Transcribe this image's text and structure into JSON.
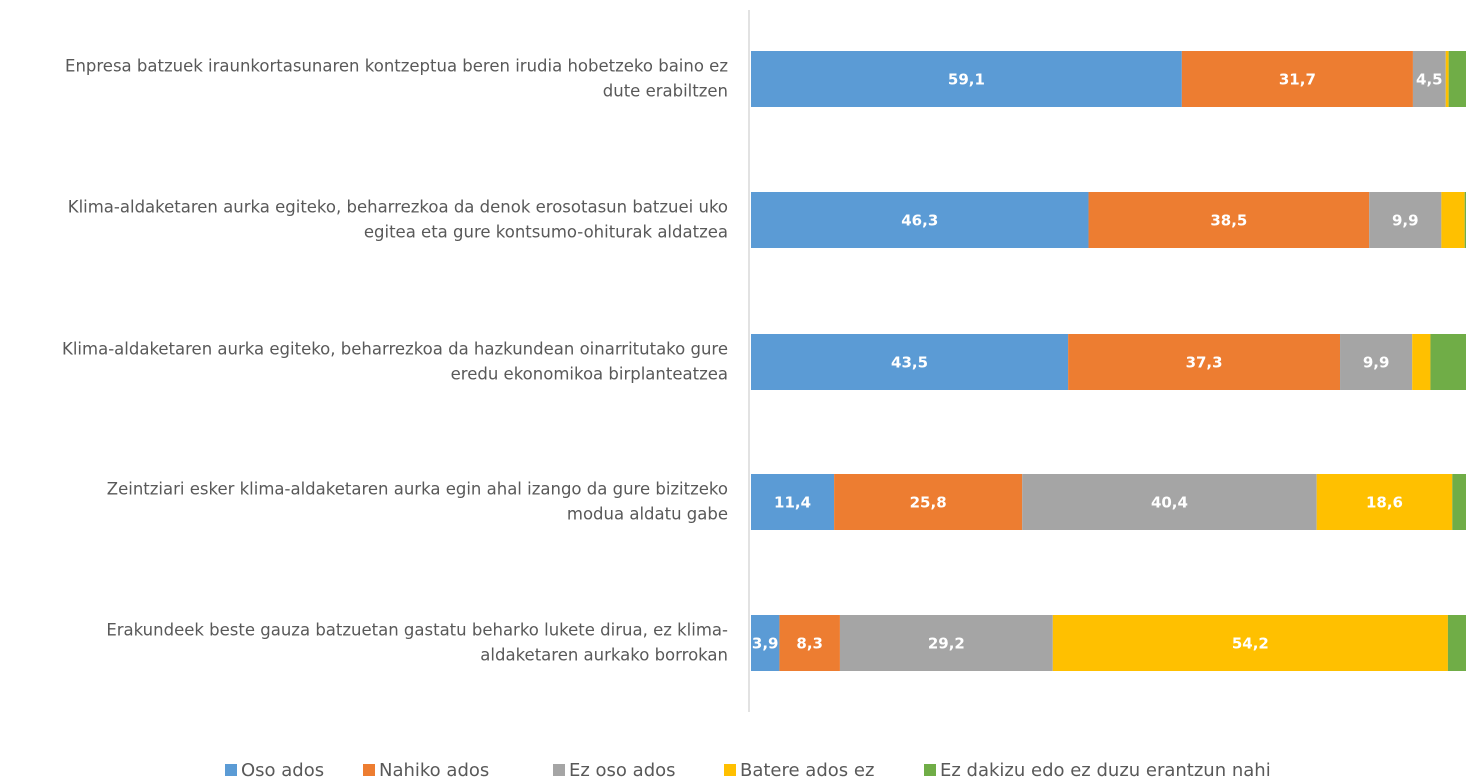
{
  "chart_data": {
    "type": "stacked_barh",
    "categories": [
      [
        "Enpresa batzuek iraunkortasunaren kontzeptua beren irudia hobetzeko baino ez",
        "dute erabiltzen"
      ],
      [
        "Klima-aldaketaren aurka egiteko, beharrezkoa da denok erosotasun batzuei uko",
        "egitea eta gure kontsumo-ohiturak aldatzea"
      ],
      [
        "Klima-aldaketaren aurka egiteko, beharrezkoa da hazkundean oinarritutako gure",
        "eredu ekonomikoa birplanteatzea"
      ],
      [
        "Zeintziari esker klima-aldaketaren aurka egin ahal izango da gure bizitzeko",
        "modua aldatu gabe"
      ],
      [
        "Erakundeek beste gauza batzuetan gastatu beharko lukete dirua, ez klima-",
        "aldaketaren aurkako borrokan"
      ]
    ],
    "series": [
      {
        "name": "Oso ados",
        "color": "#5b9bd5",
        "values": [
          59.1,
          46.3,
          43.5,
          11.4,
          3.9
        ],
        "value_labels": [
          "59,1",
          "46,3",
          "43,5",
          "11,4",
          "3,9"
        ]
      },
      {
        "name": "Nahiko ados",
        "color": "#ed7d31",
        "values": [
          31.7,
          38.5,
          37.3,
          25.8,
          8.3
        ],
        "value_labels": [
          "31,7",
          "38,5",
          "37,3",
          "25,8",
          "8,3"
        ]
      },
      {
        "name": "Ez oso ados",
        "color": "#a5a5a5",
        "values": [
          4.5,
          9.9,
          9.9,
          40.4,
          29.2
        ],
        "value_labels": [
          "4,5",
          "9,9",
          "9,9",
          "40,4",
          "29,2"
        ]
      },
      {
        "name": "Batere ados ez",
        "color": "#ffc000",
        "values": [
          0.4,
          3.2,
          2.5,
          18.6,
          54.2
        ],
        "value_labels": [
          null,
          null,
          null,
          "18,6",
          "54,2"
        ]
      },
      {
        "name": "Ez dakizu edo ez duzu erantzun nahi",
        "color": "#70ad47",
        "values": [
          4.3,
          2.1,
          6.8,
          3.8,
          4.4
        ]
      }
    ],
    "xlim": [
      0,
      100
    ]
  }
}
